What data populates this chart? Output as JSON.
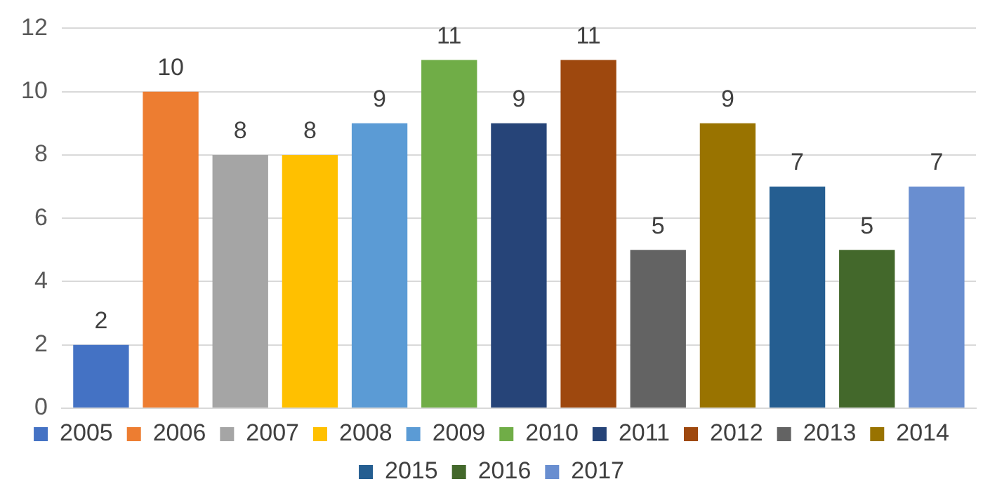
{
  "chart_data": {
    "type": "bar",
    "categories": [
      null
    ],
    "series": [
      {
        "name": "2005",
        "color": "#4472c4",
        "values": [
          2
        ]
      },
      {
        "name": "2006",
        "color": "#ed7d31",
        "values": [
          10
        ]
      },
      {
        "name": "2007",
        "color": "#a5a5a5",
        "values": [
          8
        ]
      },
      {
        "name": "2008",
        "color": "#ffc000",
        "values": [
          8
        ]
      },
      {
        "name": "2009",
        "color": "#5b9bd5",
        "values": [
          9
        ]
      },
      {
        "name": "2010",
        "color": "#70ad47",
        "values": [
          11
        ]
      },
      {
        "name": "2011",
        "color": "#264478",
        "values": [
          9
        ]
      },
      {
        "name": "2012",
        "color": "#9e480e",
        "values": [
          11
        ]
      },
      {
        "name": "2013",
        "color": "#636363",
        "values": [
          5
        ]
      },
      {
        "name": "2014",
        "color": "#997300",
        "values": [
          9
        ]
      },
      {
        "name": "2015",
        "color": "#255e91",
        "values": [
          7
        ]
      },
      {
        "name": "2016",
        "color": "#43682b",
        "values": [
          5
        ]
      },
      {
        "name": "2017",
        "color": "#698ed0",
        "values": [
          7
        ]
      }
    ],
    "ylim": [
      0,
      12
    ],
    "yticks": [
      0,
      2,
      4,
      6,
      8,
      10,
      12
    ],
    "grid": "y",
    "legend": "bottom",
    "data_labels": true
  }
}
